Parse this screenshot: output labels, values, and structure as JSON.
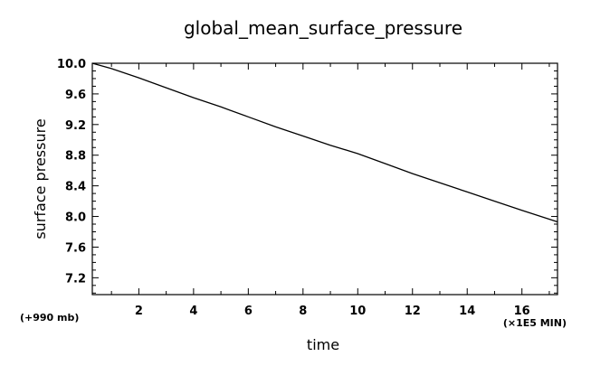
{
  "chart_data": {
    "type": "line",
    "title": "global_mean_surface_pressure",
    "xlabel": "time",
    "ylabel": "surface pressure",
    "y_offset_note": "(+990 mb)",
    "x_unit_note": "(×1E5 MIN)",
    "xlim": [
      0.3,
      17.3
    ],
    "ylim": [
      6.98,
      10.0
    ],
    "x_ticks": [
      2,
      4,
      6,
      8,
      10,
      12,
      14,
      16
    ],
    "x_tick_labels": [
      "2",
      "4",
      "6",
      "8",
      "10",
      "12",
      "14",
      "16"
    ],
    "y_ticks": [
      10.0,
      9.6,
      9.2,
      8.8,
      8.4,
      8.0,
      7.6,
      7.2
    ],
    "y_tick_labels": [
      "10.0",
      "9.6",
      "9.2",
      "8.8",
      "8.4",
      "8.0",
      "7.6",
      "7.2"
    ],
    "grid": false,
    "series": [
      {
        "color": "#000000",
        "x": [
          0.3,
          1,
          2,
          3,
          4,
          5,
          6,
          7,
          8,
          9,
          10,
          11,
          12,
          13,
          14,
          15,
          16,
          17.3
        ],
        "y": [
          10.0,
          9.93,
          9.81,
          9.68,
          9.55,
          9.43,
          9.3,
          9.17,
          9.05,
          8.93,
          8.82,
          8.69,
          8.56,
          8.44,
          8.32,
          8.2,
          8.08,
          7.93
        ]
      }
    ]
  }
}
